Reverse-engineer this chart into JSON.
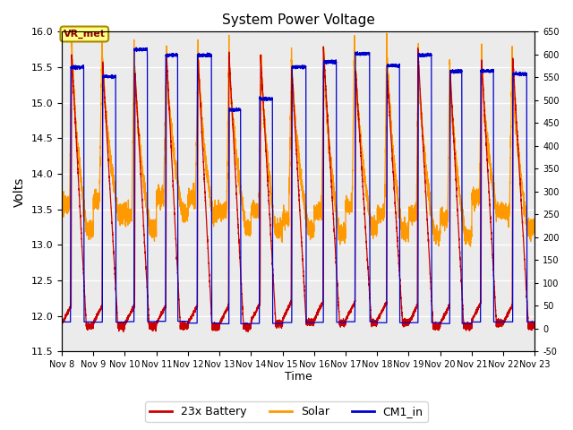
{
  "title": "System Power Voltage",
  "xlabel": "Time",
  "ylabel_left": "Volts",
  "ylim_left": [
    11.5,
    16.0
  ],
  "ylim_right": [
    -50,
    650
  ],
  "yticks_left": [
    11.5,
    12.0,
    12.5,
    13.0,
    13.5,
    14.0,
    14.5,
    15.0,
    15.5,
    16.0
  ],
  "yticks_right": [
    -50,
    0,
    50,
    100,
    150,
    200,
    250,
    300,
    350,
    400,
    450,
    500,
    550,
    600,
    650
  ],
  "xtick_labels": [
    "Nov 8",
    "Nov 9",
    "Nov 10",
    "Nov 11",
    "Nov 12",
    "Nov 13",
    "Nov 14",
    "Nov 15",
    "Nov 16",
    "Nov 17",
    "Nov 18",
    "Nov 19",
    "Nov 20",
    "Nov 21",
    "Nov 22",
    "Nov 23"
  ],
  "plot_bg_color": "#ebebeb",
  "battery_color": "#cc0000",
  "solar_color": "#ff9900",
  "cm1_color": "#0000cc",
  "annotation_text": "VR_met",
  "legend_labels": [
    "23x Battery",
    "Solar",
    "CM1_in"
  ]
}
